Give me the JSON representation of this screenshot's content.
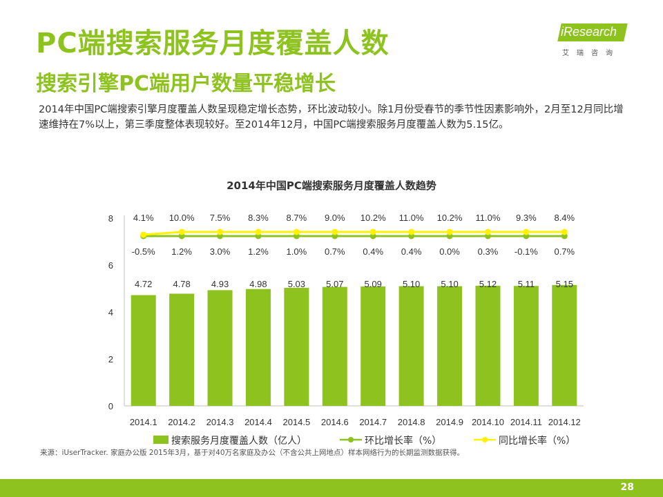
{
  "header": {
    "title": "PC端搜索服务月度覆盖人数",
    "subtitle": "搜索引擎PC端用户数量平稳增长",
    "description": "2014年中国PC端搜索引擎月度覆盖人数呈现稳定增长态势，环比波动较小。除1月份受春节的季节性因素影响外，2月至12月同比增速维持在7%以上，第三季度整体表现较好。至2014年12月，中国PC端搜索服务月度覆盖人数为5.15亿。"
  },
  "logo": {
    "text": "iResearch",
    "sub": "艾瑞咨询"
  },
  "colors": {
    "accent": "#8DC21F",
    "bar": "#8DC21F",
    "mom_line": "#8DC21F",
    "yoy_line": "#FFF200"
  },
  "chart_data": {
    "type": "bar",
    "title": "2014年中国PC端搜索服务月度覆盖人数趋势",
    "categories": [
      "2014.1",
      "2014.2",
      "2014.3",
      "2014.4",
      "2014.5",
      "2014.6",
      "2014.7",
      "2014.8",
      "2014.9",
      "2014.10",
      "2014.11",
      "2014.12"
    ],
    "ylim": [
      0,
      8
    ],
    "yticks": [
      0,
      2,
      4,
      6,
      8
    ],
    "series": [
      {
        "name": "搜索服务月度覆盖人数（亿人）",
        "type": "bar",
        "values": [
          4.72,
          4.78,
          4.93,
          4.98,
          5.03,
          5.07,
          5.09,
          5.1,
          5.1,
          5.12,
          5.11,
          5.15
        ],
        "labels": [
          "4.72",
          "4.78",
          "4.93",
          "4.98",
          "5.03",
          "5.07",
          "5.09",
          "5.10",
          "5.10",
          "5.12",
          "5.11",
          "5.15"
        ]
      },
      {
        "name": "环比增长率（%）",
        "type": "line",
        "labels": [
          "-0.5%",
          "1.2%",
          "3.0%",
          "1.2%",
          "1.0%",
          "0.7%",
          "0.4%",
          "0.4%",
          "0.0%",
          "0.3%",
          "-0.1%",
          "0.7%"
        ]
      },
      {
        "name": "同比增长率（%）",
        "type": "line",
        "labels": [
          "4.1%",
          "10.0%",
          "7.5%",
          "8.3%",
          "8.7%",
          "9.0%",
          "10.2%",
          "11.0%",
          "10.2%",
          "11.0%",
          "9.3%",
          "8.4%"
        ]
      }
    ],
    "grid": false,
    "legend": "bottom"
  },
  "source": "来源：iUserTracker. 家庭办公版 2015年3月，基于对40万名家庭及办公（不含公共上网地点）样本网络行为的长期监测数据获得。",
  "page_number": "28"
}
